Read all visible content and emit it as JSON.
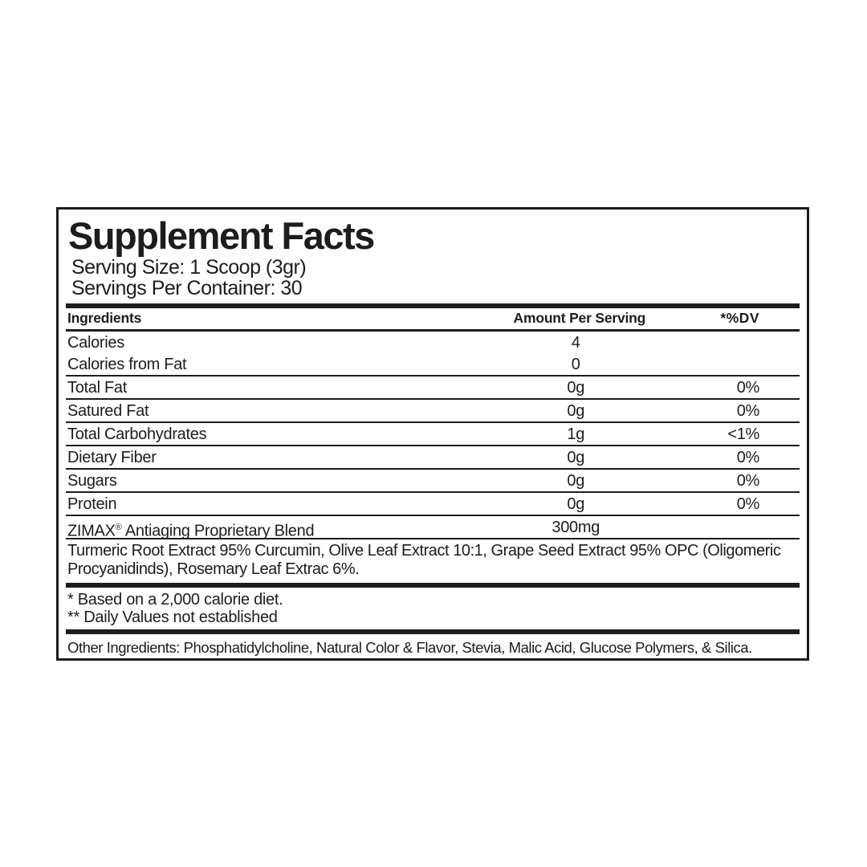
{
  "colors": {
    "ink": "#1d1d1b",
    "background": "#ffffff"
  },
  "label": {
    "title": "Supplement Facts",
    "serving_size": "Serving Size: 1 Scoop (3gr)",
    "servings_per_container": "Servings Per Container: 30",
    "columns": {
      "ingredients": "Ingredients",
      "amount": "Amount Per Serving",
      "dv": "*%DV"
    },
    "rows": [
      {
        "name": "Calories",
        "amount": "4",
        "dv": "",
        "divider": false
      },
      {
        "name": "Calories from Fat",
        "amount": "0",
        "dv": "",
        "divider": false
      },
      {
        "name": "Total Fat",
        "amount": "0g",
        "dv": "0%",
        "divider": true
      },
      {
        "name": "Satured Fat",
        "amount": "0g",
        "dv": "0%",
        "divider": true
      },
      {
        "name": "Total Carbohydrates",
        "amount": "1g",
        "dv": "<1%",
        "divider": true
      },
      {
        "name": "Dietary Fiber",
        "amount": "0g",
        "dv": "0%",
        "divider": true
      },
      {
        "name": "Sugars",
        "amount": "0g",
        "dv": "0%",
        "divider": true
      },
      {
        "name": "Protein",
        "amount": "0g",
        "dv": "0%",
        "divider": true
      },
      {
        "name": "ZIMAX",
        "name_sup": "®",
        "name_rest": " Antiaging Proprietary Blend",
        "amount": "300mg",
        "dv": "",
        "divider": true
      }
    ],
    "blend_description": "Turmeric Root Extract 95% Curcumin, Olive Leaf Extract 10:1, Grape Seed Extract 95% OPC (Oligomeric Procyanidinds), Rosemary Leaf Extrac 6%.",
    "footnotes": [
      "* Based on a 2,000 calorie diet.",
      "** Daily Values not established"
    ],
    "other_ingredients": "Other Ingredients: Phosphatidylcholine, Natural Color & Flavor, Stevia, Malic Acid, Glucose Polymers, & Silica."
  }
}
